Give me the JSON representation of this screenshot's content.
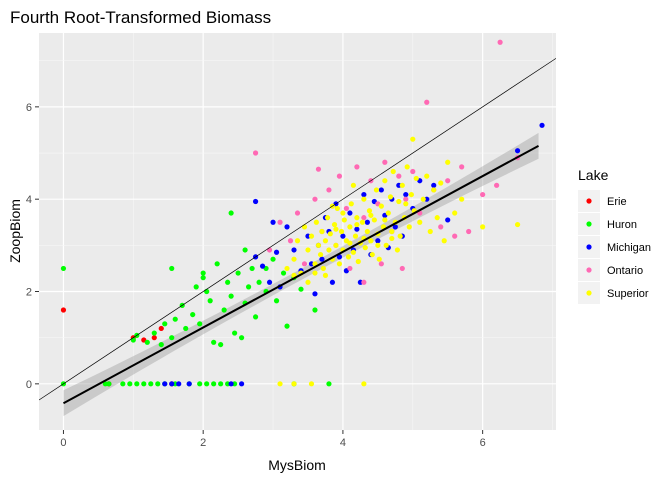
{
  "chart_data": {
    "type": "scatter",
    "title": "Fourth Root-Transformed Biomass",
    "xlabel": "MysBiom",
    "ylabel": "ZoopBiom",
    "xlim": [
      -0.35,
      7.05
    ],
    "ylim": [
      -1.0,
      7.6
    ],
    "x_ticks": [
      0,
      2,
      4,
      6
    ],
    "y_ticks": [
      0,
      2,
      4,
      6
    ],
    "grid": true,
    "legend": {
      "title": "Lake",
      "position": "right"
    },
    "series": [
      {
        "name": "Erie",
        "color": "#ff0000",
        "points": [
          [
            0.0,
            1.6
          ],
          [
            0.65,
            0.0
          ],
          [
            1.0,
            1.0
          ],
          [
            1.15,
            0.95
          ],
          [
            1.3,
            1.0
          ],
          [
            1.4,
            1.2
          ],
          [
            1.55,
            0.0
          ]
        ]
      },
      {
        "name": "Huron",
        "color": "#00ff00",
        "points": [
          [
            0.0,
            2.5
          ],
          [
            0.0,
            0.0
          ],
          [
            0.6,
            0.0
          ],
          [
            0.65,
            0.0
          ],
          [
            0.85,
            0.0
          ],
          [
            0.95,
            0.0
          ],
          [
            1.05,
            0.0
          ],
          [
            1.15,
            0.0
          ],
          [
            1.25,
            0.0
          ],
          [
            1.35,
            0.0
          ],
          [
            1.45,
            0.0
          ],
          [
            1.6,
            0.0
          ],
          [
            1.8,
            0.0
          ],
          [
            1.95,
            0.0
          ],
          [
            2.05,
            0.0
          ],
          [
            2.15,
            0.0
          ],
          [
            2.25,
            0.0
          ],
          [
            2.35,
            0.0
          ],
          [
            2.45,
            0.0
          ],
          [
            3.3,
            0.0
          ],
          [
            3.8,
            0.0
          ],
          [
            1.0,
            0.95
          ],
          [
            1.05,
            1.05
          ],
          [
            1.2,
            0.9
          ],
          [
            1.3,
            1.1
          ],
          [
            1.4,
            0.85
          ],
          [
            1.45,
            1.3
          ],
          [
            1.55,
            1.0
          ],
          [
            1.6,
            1.4
          ],
          [
            1.7,
            1.7
          ],
          [
            1.75,
            1.2
          ],
          [
            1.85,
            1.5
          ],
          [
            1.9,
            2.1
          ],
          [
            1.95,
            1.3
          ],
          [
            2.0,
            2.3
          ],
          [
            2.05,
            2.0
          ],
          [
            2.1,
            1.8
          ],
          [
            2.15,
            0.9
          ],
          [
            2.2,
            2.6
          ],
          [
            2.25,
            0.85
          ],
          [
            2.3,
            1.6
          ],
          [
            2.35,
            2.2
          ],
          [
            2.4,
            1.9
          ],
          [
            2.45,
            1.1
          ],
          [
            2.5,
            2.4
          ],
          [
            2.55,
            1.0
          ],
          [
            2.6,
            1.75
          ],
          [
            2.65,
            2.1
          ],
          [
            2.7,
            2.5
          ],
          [
            2.75,
            1.45
          ],
          [
            2.8,
            2.2
          ],
          [
            2.9,
            2.0
          ],
          [
            3.0,
            2.7
          ],
          [
            3.05,
            1.8
          ],
          [
            3.15,
            2.4
          ],
          [
            3.2,
            1.25
          ],
          [
            3.3,
            2.3
          ],
          [
            3.4,
            2.05
          ],
          [
            3.6,
            1.6
          ],
          [
            2.4,
            3.7
          ],
          [
            1.55,
            2.5
          ],
          [
            2.0,
            2.4
          ],
          [
            2.6,
            2.9
          ],
          [
            2.9,
            2.5
          ]
        ]
      },
      {
        "name": "Michigan",
        "color": "#0000ff",
        "points": [
          [
            1.45,
            0.0
          ],
          [
            1.55,
            0.0
          ],
          [
            1.65,
            0.0
          ],
          [
            1.8,
            0.0
          ],
          [
            2.4,
            0.0
          ],
          [
            2.55,
            0.0
          ],
          [
            2.75,
            2.75
          ],
          [
            2.85,
            2.55
          ],
          [
            2.95,
            2.2
          ],
          [
            3.0,
            3.5
          ],
          [
            3.05,
            2.85
          ],
          [
            3.1,
            2.1
          ],
          [
            3.2,
            3.4
          ],
          [
            3.3,
            2.9
          ],
          [
            3.4,
            2.45
          ],
          [
            3.5,
            3.2
          ],
          [
            3.6,
            1.95
          ],
          [
            3.65,
            3.0
          ],
          [
            3.7,
            2.7
          ],
          [
            3.75,
            3.6
          ],
          [
            3.8,
            3.3
          ],
          [
            3.85,
            2.2
          ],
          [
            3.9,
            3.9
          ],
          [
            3.95,
            2.75
          ],
          [
            4.0,
            3.2
          ],
          [
            4.05,
            2.45
          ],
          [
            4.1,
            3.7
          ],
          [
            4.15,
            2.9
          ],
          [
            4.2,
            3.35
          ],
          [
            4.25,
            2.2
          ],
          [
            4.3,
            4.1
          ],
          [
            4.35,
            3.5
          ],
          [
            4.4,
            2.8
          ],
          [
            4.45,
            3.95
          ],
          [
            4.5,
            3.1
          ],
          [
            4.55,
            4.2
          ],
          [
            4.6,
            3.65
          ],
          [
            4.65,
            2.95
          ],
          [
            4.7,
            4.0
          ],
          [
            4.75,
            3.4
          ],
          [
            4.8,
            4.3
          ],
          [
            4.85,
            3.2
          ],
          [
            4.9,
            4.1
          ],
          [
            5.0,
            3.8
          ],
          [
            5.1,
            4.4
          ],
          [
            5.2,
            4.0
          ],
          [
            5.3,
            4.3
          ],
          [
            5.5,
            3.55
          ],
          [
            6.5,
            5.05
          ],
          [
            6.85,
            5.6
          ],
          [
            2.75,
            3.95
          ],
          [
            3.55,
            2.6
          ]
        ]
      },
      {
        "name": "Ontario",
        "color": "#ff69b4",
        "points": [
          [
            2.75,
            5.0
          ],
          [
            2.95,
            2.9
          ],
          [
            3.1,
            3.5
          ],
          [
            3.25,
            3.1
          ],
          [
            3.35,
            3.7
          ],
          [
            3.45,
            2.6
          ],
          [
            3.6,
            4.0
          ],
          [
            3.65,
            4.65
          ],
          [
            3.7,
            3.3
          ],
          [
            3.8,
            4.2
          ],
          [
            3.9,
            3.0
          ],
          [
            3.95,
            4.5
          ],
          [
            4.05,
            3.8
          ],
          [
            4.1,
            2.5
          ],
          [
            4.2,
            4.7
          ],
          [
            4.3,
            3.6
          ],
          [
            4.4,
            4.4
          ],
          [
            4.5,
            3.9
          ],
          [
            4.6,
            4.8
          ],
          [
            4.7,
            3.3
          ],
          [
            4.8,
            4.5
          ],
          [
            4.9,
            4.0
          ],
          [
            5.0,
            4.6
          ],
          [
            5.1,
            3.7
          ],
          [
            5.2,
            6.1
          ],
          [
            5.3,
            4.2
          ],
          [
            5.4,
            3.4
          ],
          [
            5.5,
            4.4
          ],
          [
            5.6,
            3.2
          ],
          [
            5.7,
            4.7
          ],
          [
            5.8,
            3.3
          ],
          [
            6.0,
            4.1
          ],
          [
            6.2,
            4.3
          ],
          [
            6.25,
            7.4
          ],
          [
            6.5,
            4.9
          ],
          [
            4.55,
            2.6
          ],
          [
            4.85,
            2.5
          ],
          [
            4.3,
            2.2
          ]
        ]
      },
      {
        "name": "Superior",
        "color": "#ffff00",
        "points": [
          [
            3.1,
            0.0
          ],
          [
            3.3,
            0.0
          ],
          [
            3.55,
            0.0
          ],
          [
            4.3,
            0.0
          ],
          [
            3.3,
            2.7
          ],
          [
            3.35,
            3.1
          ],
          [
            3.4,
            2.4
          ],
          [
            3.45,
            3.4
          ],
          [
            3.5,
            2.9
          ],
          [
            3.55,
            3.2
          ],
          [
            3.6,
            2.6
          ],
          [
            3.62,
            3.5
          ],
          [
            3.65,
            3.0
          ],
          [
            3.68,
            2.8
          ],
          [
            3.7,
            3.3
          ],
          [
            3.72,
            2.5
          ],
          [
            3.75,
            3.1
          ],
          [
            3.78,
            3.6
          ],
          [
            3.8,
            2.9
          ],
          [
            3.82,
            3.25
          ],
          [
            3.85,
            2.7
          ],
          [
            3.88,
            3.45
          ],
          [
            3.9,
            3.0
          ],
          [
            3.92,
            3.8
          ],
          [
            3.95,
            2.6
          ],
          [
            3.98,
            3.3
          ],
          [
            4.0,
            2.9
          ],
          [
            4.02,
            3.55
          ],
          [
            4.05,
            3.1
          ],
          [
            4.08,
            2.75
          ],
          [
            4.1,
            3.4
          ],
          [
            4.12,
            3.9
          ],
          [
            4.15,
            2.85
          ],
          [
            4.18,
            3.2
          ],
          [
            4.2,
            3.6
          ],
          [
            4.22,
            2.65
          ],
          [
            4.25,
            3.05
          ],
          [
            4.28,
            3.5
          ],
          [
            4.3,
            4.0
          ],
          [
            4.32,
            2.95
          ],
          [
            4.35,
            3.3
          ],
          [
            4.38,
            3.75
          ],
          [
            4.4,
            3.1
          ],
          [
            4.42,
            2.8
          ],
          [
            4.45,
            3.55
          ],
          [
            4.48,
            4.2
          ],
          [
            4.5,
            3.25
          ],
          [
            4.52,
            2.7
          ],
          [
            4.55,
            3.85
          ],
          [
            4.58,
            3.4
          ],
          [
            4.6,
            4.4
          ],
          [
            4.62,
            3.0
          ],
          [
            4.65,
            3.7
          ],
          [
            4.68,
            4.05
          ],
          [
            4.7,
            3.3
          ],
          [
            4.72,
            4.6
          ],
          [
            4.75,
            3.5
          ],
          [
            4.78,
            2.9
          ],
          [
            4.8,
            3.95
          ],
          [
            4.82,
            3.2
          ],
          [
            4.85,
            4.3
          ],
          [
            4.88,
            3.6
          ],
          [
            4.9,
            3.9
          ],
          [
            4.92,
            4.7
          ],
          [
            4.95,
            3.4
          ],
          [
            4.98,
            4.1
          ],
          [
            5.0,
            5.3
          ],
          [
            5.02,
            3.75
          ],
          [
            5.05,
            4.45
          ],
          [
            5.1,
            3.5
          ],
          [
            5.15,
            4.0
          ],
          [
            5.2,
            4.5
          ],
          [
            5.25,
            3.3
          ],
          [
            5.3,
            4.2
          ],
          [
            5.35,
            3.6
          ],
          [
            5.4,
            4.35
          ],
          [
            5.45,
            3.1
          ],
          [
            5.5,
            4.8
          ],
          [
            5.6,
            3.7
          ],
          [
            5.7,
            4.0
          ],
          [
            6.0,
            3.4
          ],
          [
            6.5,
            3.45
          ],
          [
            3.9,
            3.35
          ],
          [
            4.0,
            3.7
          ],
          [
            4.1,
            3.05
          ],
          [
            4.2,
            3.45
          ],
          [
            4.3,
            3.15
          ],
          [
            4.4,
            3.65
          ],
          [
            4.5,
            3.0
          ],
          [
            4.6,
            3.55
          ],
          [
            4.7,
            3.15
          ],
          [
            3.6,
            2.4
          ],
          [
            3.75,
            2.35
          ],
          [
            3.5,
            2.2
          ],
          [
            3.3,
            2.35
          ],
          [
            3.2,
            2.5
          ],
          [
            3.85,
            3.85
          ],
          [
            4.15,
            4.3
          ]
        ]
      }
    ],
    "reference_line": {
      "intercept": 0,
      "slope": 1
    },
    "regression_line": {
      "x_start": 0.0,
      "x_end": 6.8,
      "intercept": -0.42,
      "slope": 0.82,
      "band_min": 0.12,
      "band_max": 0.28
    }
  }
}
